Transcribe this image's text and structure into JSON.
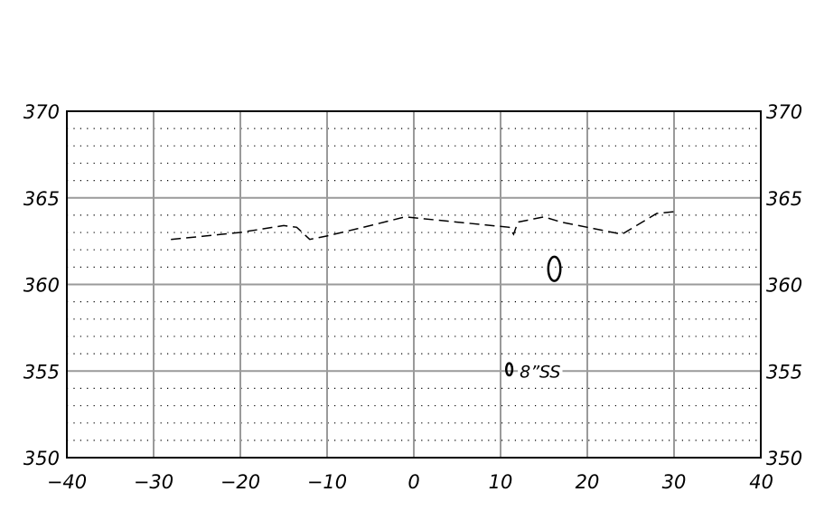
{
  "chart_data": {
    "type": "line",
    "title": "",
    "xlabel": "",
    "ylabel": "",
    "xlim": [
      -40,
      40
    ],
    "ylim": [
      350,
      370
    ],
    "grid": true,
    "minor_grid": "dotted",
    "right_axis_mirrored": true,
    "x_ticks": [
      -40,
      -30,
      -20,
      -10,
      0,
      10,
      20,
      30,
      40
    ],
    "x_tick_labels": [
      "−40",
      "−30",
      "−20",
      "−10",
      "0",
      "10",
      "20",
      "30",
      "40"
    ],
    "y_ticks": [
      350,
      355,
      360,
      365,
      370
    ],
    "y_tick_labels": [
      "350",
      "355",
      "360",
      "365",
      "370"
    ],
    "series": [
      {
        "style": "dashed",
        "color": "#000000",
        "points": [
          [
            -28.0,
            362.6
          ],
          [
            -24.0,
            362.8
          ],
          [
            -20.0,
            363.0
          ],
          [
            -15.0,
            363.4
          ],
          [
            -13.5,
            363.3
          ],
          [
            -12.0,
            362.6
          ],
          [
            -10.0,
            362.8
          ],
          [
            -5.0,
            363.4
          ],
          [
            -1.0,
            363.9
          ],
          [
            1.0,
            363.8
          ],
          [
            5.0,
            363.6
          ],
          [
            11.0,
            363.3
          ],
          [
            11.5,
            362.9
          ],
          [
            12.0,
            363.6
          ],
          [
            15.0,
            363.9
          ],
          [
            17.0,
            363.6
          ],
          [
            19.0,
            363.4
          ],
          [
            24.0,
            362.9
          ],
          [
            28.0,
            364.1
          ],
          [
            30.0,
            364.2
          ]
        ]
      }
    ],
    "markers": [
      {
        "shape": "ellipse",
        "x": 16.2,
        "y": 360.9,
        "rx": 0.7,
        "ry": 0.7
      },
      {
        "shape": "ellipse",
        "x": 11.0,
        "y": 355.1,
        "rx": 0.35,
        "ry": 0.35
      }
    ],
    "annotations": [
      {
        "text": "8”SS",
        "x": 12.2,
        "y": 355.0
      }
    ]
  }
}
